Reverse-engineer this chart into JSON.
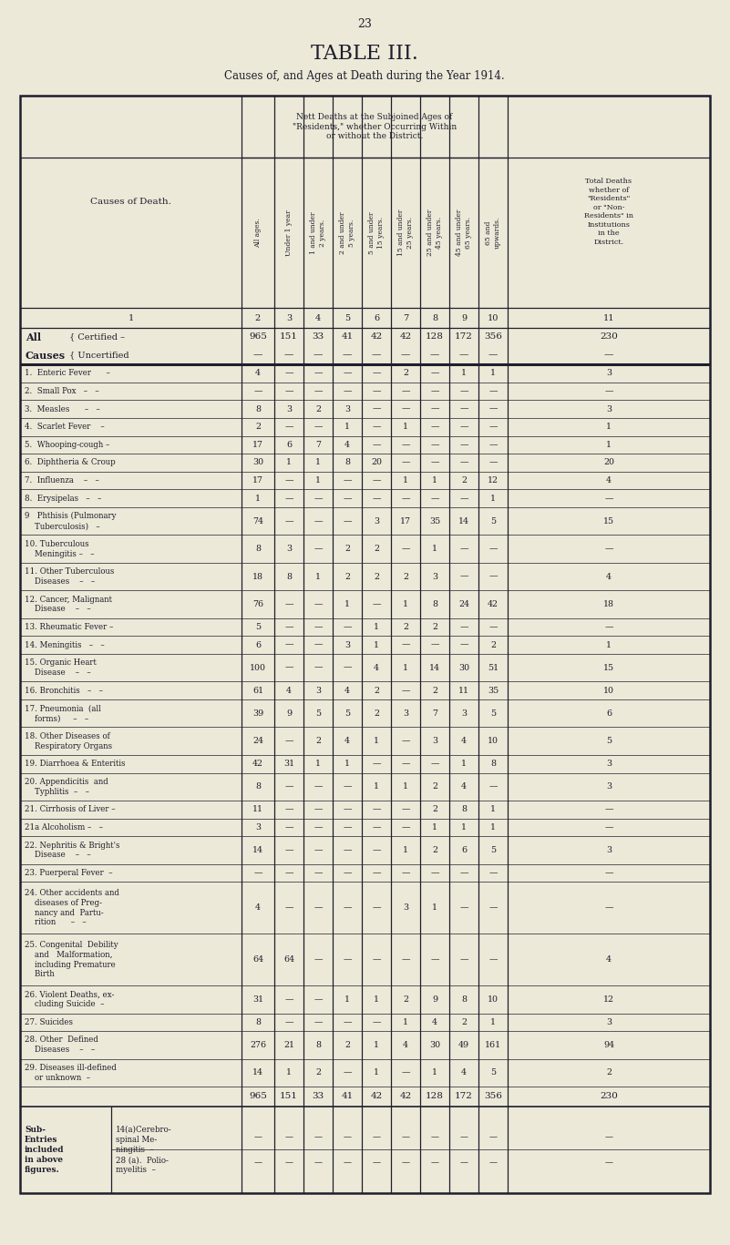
{
  "page_number": "23",
  "title": "TABLE III.",
  "subtitle": "Causes of, and Ages at Death during the Year 1914.",
  "bg_color": "#ede9d8",
  "text_color": "#1e1e2e",
  "nett_header": "Nett Deaths at the Subjoined Ages of\n\"Residents,\" whether Occurring Within\nor without the District.",
  "total_header": "Total Deaths\nwhether of\n\"Residents\"\nor \"Non-\nResidents\" in\nInstitutions\nin the\nDistrict.",
  "col_headers_rotated": [
    "All ages.",
    "Under 1 year",
    "1 and under\n2 years.",
    "2 and under\n5 years.",
    "5 and under\n15 years.",
    "15 and under\n25 years.",
    "25 and under\n45 years.",
    "45 and under\n65 years.",
    "65 and\nupwards."
  ],
  "col_nums": [
    "1",
    "2",
    "3",
    "4",
    "5",
    "6",
    "7",
    "8",
    "9",
    "10",
    "11"
  ],
  "cert_vals": [
    "965",
    "151",
    "33",
    "41",
    "42",
    "42",
    "128",
    "172",
    "356",
    "230"
  ],
  "uncert_vals": [
    "—",
    "—",
    "—",
    "—",
    "—",
    "—",
    "—",
    "—",
    "—",
    "—"
  ],
  "total_vals": [
    "965",
    "151",
    "33",
    "41",
    "42",
    "42",
    "128",
    "172",
    "356",
    "230"
  ],
  "rows": [
    {
      "label": "1.  Enteric Fever      –",
      "nlines": 1,
      "values": [
        "4",
        "—",
        "—",
        "—",
        "—",
        "2",
        "—",
        "1",
        "1",
        "3"
      ]
    },
    {
      "label": "2.  Small Pox   –   –",
      "nlines": 1,
      "values": [
        "—",
        "—",
        "—",
        "—",
        "—",
        "—",
        "—",
        "—",
        "—",
        "—"
      ]
    },
    {
      "label": "3.  Measles      –   –",
      "nlines": 1,
      "values": [
        "8",
        "3",
        "2",
        "3",
        "—",
        "—",
        "—",
        "—",
        "—",
        "3"
      ]
    },
    {
      "label": "4.  Scarlet Fever    –",
      "nlines": 1,
      "values": [
        "2",
        "—",
        "—",
        "1",
        "—",
        "1",
        "—",
        "—",
        "—",
        "1"
      ]
    },
    {
      "label": "5.  Whooping-cough –",
      "nlines": 1,
      "values": [
        "17",
        "6",
        "7",
        "4",
        "—",
        "—",
        "—",
        "—",
        "—",
        "1"
      ]
    },
    {
      "label": "6.  Diphtheria & Croup",
      "nlines": 1,
      "values": [
        "30",
        "1",
        "1",
        "8",
        "20",
        "—",
        "—",
        "—",
        "—",
        "20"
      ]
    },
    {
      "label": "7.  Influenza    –   –",
      "nlines": 1,
      "values": [
        "17",
        "—",
        "1",
        "—",
        "—",
        "1",
        "1",
        "2",
        "12",
        "4"
      ]
    },
    {
      "label": "8.  Erysipelas   –   –",
      "nlines": 1,
      "values": [
        "1",
        "—",
        "—",
        "—",
        "—",
        "—",
        "—",
        "—",
        "1",
        "—"
      ]
    },
    {
      "label": "9   Phthisis (Pulmonary\n    Tuberculosis)   –",
      "nlines": 2,
      "values": [
        "74",
        "—",
        "—",
        "—",
        "3",
        "17",
        "35",
        "14",
        "5",
        "15"
      ]
    },
    {
      "label": "10. Tuberculous\n    Meningitis –   –",
      "nlines": 2,
      "values": [
        "8",
        "3",
        "—",
        "2",
        "2",
        "—",
        "1",
        "—",
        "—",
        "—"
      ]
    },
    {
      "label": "11. Other Tuberculous\n    Diseases    –   –",
      "nlines": 2,
      "values": [
        "18",
        "8",
        "1",
        "2",
        "2",
        "2",
        "3",
        "—",
        "—",
        "4"
      ]
    },
    {
      "label": "12. Cancer, Malignant\n    Disease    –   –",
      "nlines": 2,
      "values": [
        "76",
        "—",
        "—",
        "1",
        "—",
        "1",
        "8",
        "24",
        "42",
        "18"
      ]
    },
    {
      "label": "13. Rheumatic Fever –",
      "nlines": 1,
      "values": [
        "5",
        "—",
        "—",
        "—",
        "1",
        "2",
        "2",
        "—",
        "—",
        "—"
      ]
    },
    {
      "label": "14. Meningitis   –   –",
      "nlines": 1,
      "values": [
        "6",
        "—",
        "—",
        "3",
        "1",
        "—",
        "—",
        "—",
        "2",
        "1"
      ]
    },
    {
      "label": "15. Organic Heart\n    Disease    –   –",
      "nlines": 2,
      "values": [
        "100",
        "—",
        "—",
        "—",
        "4",
        "1",
        "14",
        "30",
        "51",
        "15"
      ]
    },
    {
      "label": "16. Bronchitis   –   –",
      "nlines": 1,
      "values": [
        "61",
        "4",
        "3",
        "4",
        "2",
        "—",
        "2",
        "11",
        "35",
        "10"
      ]
    },
    {
      "label": "17. Pneumonia  (all\n    forms)     –   –",
      "nlines": 2,
      "values": [
        "39",
        "9",
        "5",
        "5",
        "2",
        "3",
        "7",
        "3",
        "5",
        "6"
      ]
    },
    {
      "label": "18. Other Diseases of\n    Respiratory Organs",
      "nlines": 2,
      "values": [
        "24",
        "—",
        "2",
        "4",
        "1",
        "—",
        "3",
        "4",
        "10",
        "5"
      ]
    },
    {
      "label": "19. Diarrhoea & Enteritis",
      "nlines": 1,
      "values": [
        "42",
        "31",
        "1",
        "1",
        "—",
        "—",
        "—",
        "1",
        "8",
        "3"
      ]
    },
    {
      "label": "20. Appendicitis  and\n    Typhlitis  –   –",
      "nlines": 2,
      "values": [
        "8",
        "—",
        "—",
        "—",
        "1",
        "1",
        "2",
        "4",
        "—",
        "3"
      ]
    },
    {
      "label": "21. Cirrhosis of Liver –",
      "nlines": 1,
      "values": [
        "11",
        "—",
        "—",
        "—",
        "—",
        "—",
        "2",
        "8",
        "1",
        "—"
      ]
    },
    {
      "label": "21a Alcoholism –   –",
      "nlines": 1,
      "values": [
        "3",
        "—",
        "—",
        "—",
        "—",
        "—",
        "1",
        "1",
        "1",
        "—"
      ]
    },
    {
      "label": "22. Nephritis & Bright's\n    Disease    –   –",
      "nlines": 2,
      "values": [
        "14",
        "—",
        "—",
        "—",
        "—",
        "1",
        "2",
        "6",
        "5",
        "3"
      ]
    },
    {
      "label": "23. Puerperal Fever  –",
      "nlines": 1,
      "values": [
        "—",
        "—",
        "—",
        "—",
        "—",
        "—",
        "—",
        "—",
        "—",
        "—"
      ]
    },
    {
      "label": "24. Other accidents and\n    diseases of Preg-\n    nancy and  Partu-\n    rition      –   –",
      "nlines": 4,
      "values": [
        "4",
        "—",
        "—",
        "—",
        "—",
        "3",
        "1",
        "—",
        "—",
        "—"
      ]
    },
    {
      "label": "25. Congenital  Debility\n    and   Malformation,\n    including Premature\n    Birth",
      "nlines": 4,
      "values": [
        "64",
        "64",
        "—",
        "—",
        "—",
        "—",
        "—",
        "—",
        "—",
        "4"
      ]
    },
    {
      "label": "26. Violent Deaths, ex-\n    cluding Suicide  –",
      "nlines": 2,
      "values": [
        "31",
        "—",
        "—",
        "1",
        "1",
        "2",
        "9",
        "8",
        "10",
        "12"
      ]
    },
    {
      "label": "27. Suicides",
      "nlines": 1,
      "values": [
        "8",
        "—",
        "—",
        "—",
        "—",
        "1",
        "4",
        "2",
        "1",
        "3"
      ]
    },
    {
      "label": "28. Other  Defined\n    Diseases    –   –",
      "nlines": 2,
      "values": [
        "276",
        "21",
        "8",
        "2",
        "1",
        "4",
        "30",
        "49",
        "161",
        "94"
      ]
    },
    {
      "label": "29. Diseases ill-defined\n    or unknown  –",
      "nlines": 2,
      "values": [
        "14",
        "1",
        "2",
        "—",
        "1",
        "—",
        "1",
        "4",
        "5",
        "2"
      ]
    }
  ],
  "sub_left": "Sub-\nEntries\nincluded\nin above\nfigures.",
  "sub_right": "14(a)Cerebro-\nspinal Me-\nningitis  –\n28 (a).  Polio-\nmyelitis  –"
}
